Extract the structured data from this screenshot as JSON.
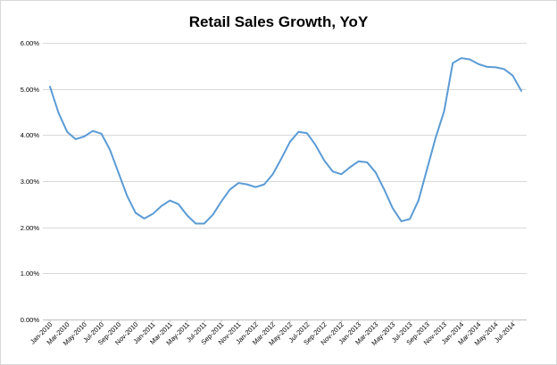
{
  "chart_data": {
    "type": "line",
    "title": "Retail Sales Growth, YoY",
    "xlabel": "",
    "ylabel": "",
    "ylim": [
      0,
      6
    ],
    "y_ticks": [
      0,
      1,
      2,
      3,
      4,
      5,
      6
    ],
    "y_tick_labels": [
      "0.00%",
      "1.00%",
      "2.00%",
      "3.00%",
      "4.00%",
      "5.00%",
      "6.00%"
    ],
    "grid": "horizontal",
    "legend": "none",
    "line_color": "#5b9bd5",
    "x": [
      "Jan-2010",
      "Feb-2010",
      "Mar-2010",
      "Apr-2010",
      "May-2010",
      "Jun-2010",
      "Jul-2010",
      "Aug-2010",
      "Sep-2010",
      "Oct-2010",
      "Nov-2010",
      "Dec-2010",
      "Jan-2011",
      "Feb-2011",
      "Mar-2011",
      "Apr-2011",
      "May-2011",
      "Jun-2011",
      "Jul-2011",
      "Aug-2011",
      "Sep-2011",
      "Oct-2011",
      "Nov-2011",
      "Dec-2011",
      "Jan-2012",
      "Feb-2012",
      "Mar-2012",
      "Apr-2012",
      "May-2012",
      "Jun-2012",
      "Jul-2012",
      "Aug-2012",
      "Sep-2012",
      "Oct-2012",
      "Nov-2012",
      "Dec-2012",
      "Jan-2013",
      "Feb-2013",
      "Mar-2013",
      "Apr-2013",
      "May-2013",
      "Jun-2013",
      "Jul-2013",
      "Aug-2013",
      "Sep-2013",
      "Oct-2013",
      "Nov-2013",
      "Dec-2013",
      "Jan-2014",
      "Feb-2014",
      "Mar-2014",
      "Apr-2014",
      "May-2014",
      "Jun-2014",
      "Jul-2014",
      "Aug-2014"
    ],
    "x_tick_labels": [
      "Jan-2010",
      "Mar-2010",
      "May-2010",
      "Jul-2010",
      "Sep-2010",
      "Nov-2010",
      "Jan-2011",
      "Mar-2011",
      "May-2011",
      "Jul-2011",
      "Sep-2011",
      "Nov-2011",
      "Jan-2012",
      "Mar-2012",
      "May-2012",
      "Jul-2012",
      "Sep-2012",
      "Nov-2012",
      "Jan-2013",
      "Mar-2013",
      "May-2013",
      "Jul-2013",
      "Sep-2013",
      "Nov-2013",
      "Jan-2014",
      "Mar-2014",
      "May-2014",
      "Jul-2014"
    ],
    "series": [
      {
        "values": [
          5.05,
          4.48,
          4.07,
          3.91,
          3.97,
          4.09,
          4.03,
          3.68,
          3.18,
          2.68,
          2.31,
          2.19,
          2.29,
          2.46,
          2.58,
          2.5,
          2.26,
          2.08,
          2.08,
          2.27,
          2.56,
          2.82,
          2.96,
          2.93,
          2.87,
          2.93,
          3.15,
          3.49,
          3.85,
          4.07,
          4.04,
          3.78,
          3.45,
          3.21,
          3.15,
          3.3,
          3.43,
          3.41,
          3.19,
          2.82,
          2.41,
          2.13,
          2.18,
          2.58,
          3.26,
          3.94,
          4.52,
          5.56,
          5.67,
          5.64,
          5.54,
          5.48,
          5.47,
          5.43,
          5.29,
          4.96
        ]
      }
    ]
  }
}
